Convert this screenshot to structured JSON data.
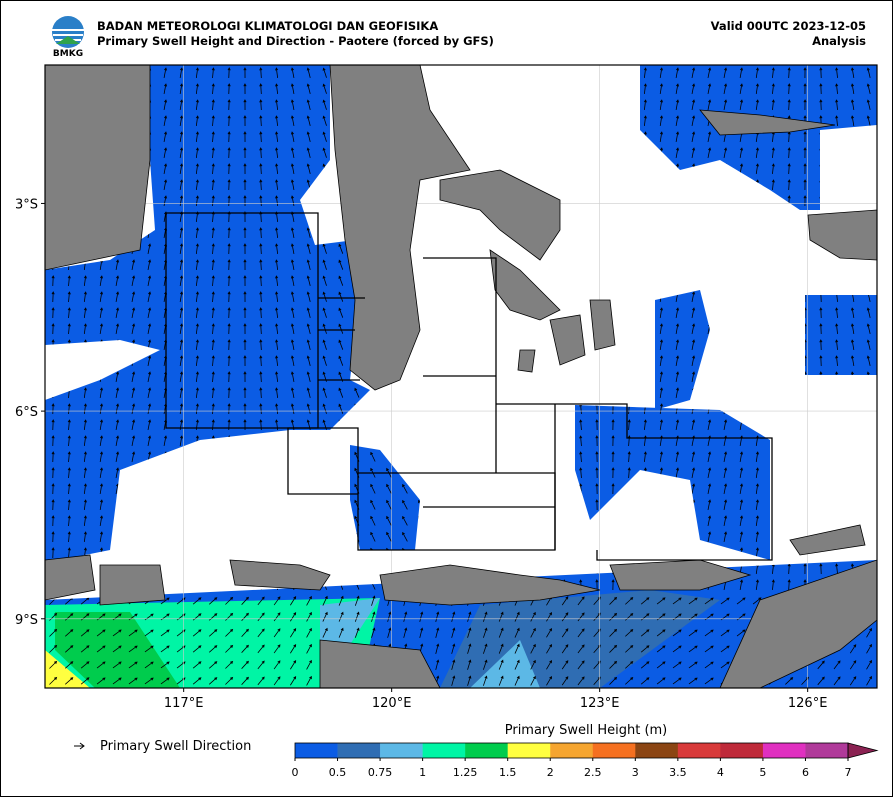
{
  "header": {
    "logo_text": "BMKG",
    "title": "BADAN METEOROLOGI KLIMATOLOGI DAN GEOFISIKA",
    "subtitle": "Primary Swell Height and Direction - Paotere (forced by GFS)",
    "valid": "Valid 00UTC 2023-12-05",
    "analysis": "Analysis"
  },
  "map": {
    "lon_range": [
      115,
      127
    ],
    "lat_range": [
      -10,
      -1
    ],
    "lon_ticks": [
      {
        "value": 117,
        "label": "117°E"
      },
      {
        "value": 120,
        "label": "120°E"
      },
      {
        "value": 123,
        "label": "123°E"
      },
      {
        "value": 126,
        "label": "126°E"
      }
    ],
    "lat_ticks": [
      {
        "value": -3,
        "label": "3°S"
      },
      {
        "value": -6,
        "label": "6°S"
      },
      {
        "value": -9,
        "label": "9°S"
      }
    ]
  },
  "legend": {
    "direction_label": "Primary Swell Direction"
  },
  "colorbar": {
    "title": "Primary Swell Height (m)",
    "bounds": [
      0,
      0.5,
      0.75,
      1,
      1.25,
      1.5,
      2,
      2.5,
      3,
      3.5,
      4,
      5,
      6,
      7
    ],
    "colors": [
      "#0b5ce4",
      "#2f6db3",
      "#5cb8e6",
      "#00f5a5",
      "#00cc4d",
      "#ffff40",
      "#f5a530",
      "#f57020",
      "#8b4513",
      "#d83a3a",
      "#bf2a3a",
      "#e030c0",
      "#b03a9a"
    ],
    "extend_color": "#8b2252"
  }
}
